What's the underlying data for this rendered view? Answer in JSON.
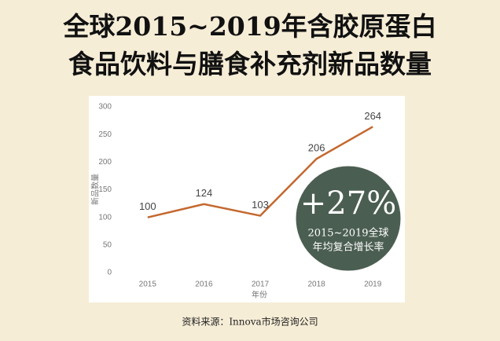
{
  "chart_data": {
    "type": "line",
    "title": [
      "全球2015~2019年含胶原蛋白",
      "食品饮料与膳食补充剂新品数量"
    ],
    "x_label": "年份",
    "y_label": "新品数量",
    "categories": [
      "2015",
      "2016",
      "2017",
      "2018",
      "2019"
    ],
    "series": [
      {
        "name": "新品数量",
        "color": "#c4682f",
        "values": [
          100,
          124,
          103,
          206,
          264
        ]
      }
    ],
    "ylim": [
      0,
      300
    ],
    "yticks": [
      0,
      50,
      100,
      150,
      200,
      250,
      300
    ],
    "grid": false,
    "annotation": {
      "headline": "+27%",
      "lines": [
        "2015~2019全球",
        "年均复合增长率"
      ]
    },
    "source": "资料来源：Innova市场咨询公司"
  }
}
